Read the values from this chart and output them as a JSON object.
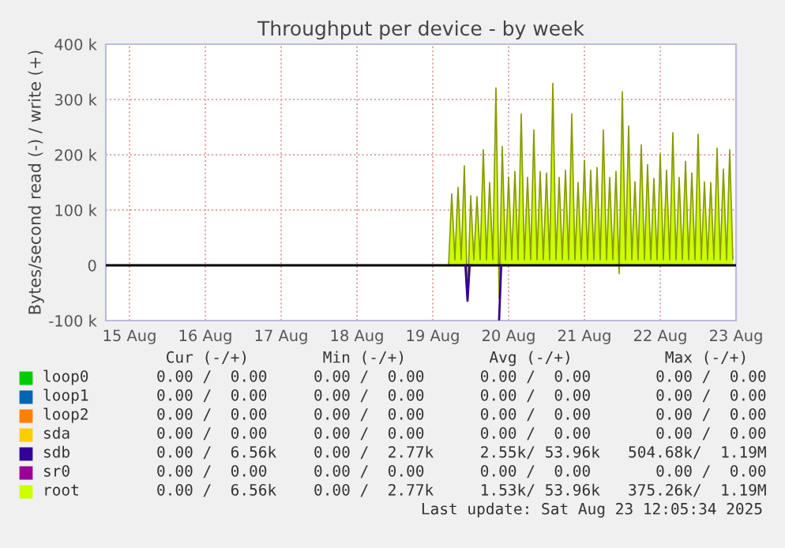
{
  "chart_data": {
    "type": "line",
    "title": "Throughput per device - by week",
    "ylabel": "Bytes/second read (-) / write (+)",
    "xlim": [
      "2025-08-15T04:30",
      "2025-08-23T12:00"
    ],
    "xticks": [
      {
        "value": "2025-08-15T12:00",
        "label": "15 Aug"
      },
      {
        "value": "2025-08-16T12:00",
        "label": "16 Aug"
      },
      {
        "value": "2025-08-17T12:00",
        "label": "17 Aug"
      },
      {
        "value": "2025-08-18T12:00",
        "label": "18 Aug"
      },
      {
        "value": "2025-08-19T12:00",
        "label": "19 Aug"
      },
      {
        "value": "2025-08-20T12:00",
        "label": "20 Aug"
      },
      {
        "value": "2025-08-21T12:00",
        "label": "21 Aug"
      },
      {
        "value": "2025-08-22T12:00",
        "label": "22 Aug"
      },
      {
        "value": "2025-08-23T12:00",
        "label": "23 Aug"
      }
    ],
    "ylim": [
      -100000,
      400000
    ],
    "yticks": [
      {
        "value": -100000,
        "label": "-100 k"
      },
      {
        "value": 0,
        "label": "0"
      },
      {
        "value": 100000,
        "label": "100 k"
      },
      {
        "value": 200000,
        "label": "200 k"
      },
      {
        "value": 300000,
        "label": "300 k"
      },
      {
        "value": 400000,
        "label": "400 k"
      }
    ],
    "grid": true,
    "legend": "bottom",
    "ref_lines": [
      {
        "axis": "y",
        "value": 0,
        "color": "#000000"
      }
    ],
    "series": [
      {
        "name": "loop0",
        "color": "#00cc00",
        "values": [
          null
        ]
      },
      {
        "name": "loop1",
        "color": "#0066b3",
        "values": [
          null
        ]
      },
      {
        "name": "loop2",
        "color": "#ff8000",
        "values": [
          null
        ]
      },
      {
        "name": "sda",
        "color": "#ffcc00",
        "values": [
          null
        ]
      },
      {
        "name": "sdb",
        "color": "#330099",
        "x": [
          "2025-08-19T22:20",
          "2025-08-19T23:00",
          "2025-08-19T23:40",
          "2025-08-20T08:20",
          "2025-08-20T09:00",
          "2025-08-20T09:40"
        ],
        "values": [
          0,
          -64000,
          0,
          null,
          -98000,
          0
        ]
      },
      {
        "name": "sr0",
        "color": "#990099",
        "values": [
          null
        ]
      },
      {
        "name": "root",
        "color": "#ccff00",
        "type": "area",
        "x": [
          "2025-08-19T17:00",
          "2025-08-19T18:00",
          "2025-08-19T19:00",
          "2025-08-19T20:00",
          "2025-08-19T21:00",
          "2025-08-19T22:00",
          "2025-08-19T23:00",
          "2025-08-20T00:00",
          "2025-08-20T01:00",
          "2025-08-20T02:00",
          "2025-08-20T03:00",
          "2025-08-20T04:00",
          "2025-08-20T05:00",
          "2025-08-20T06:00",
          "2025-08-20T07:00",
          "2025-08-20T08:00",
          "2025-08-20T09:00",
          "2025-08-20T10:00",
          "2025-08-20T11:00",
          "2025-08-20T12:00",
          "2025-08-20T13:00",
          "2025-08-20T14:00",
          "2025-08-20T15:00",
          "2025-08-20T16:00",
          "2025-08-20T17:00",
          "2025-08-20T18:00",
          "2025-08-20T19:00",
          "2025-08-20T20:00",
          "2025-08-20T21:00",
          "2025-08-20T22:00",
          "2025-08-20T23:00",
          "2025-08-21T00:00",
          "2025-08-21T01:00",
          "2025-08-21T02:00",
          "2025-08-21T03:00",
          "2025-08-21T04:00",
          "2025-08-21T05:00",
          "2025-08-21T06:00",
          "2025-08-21T07:00",
          "2025-08-21T08:00",
          "2025-08-21T09:00",
          "2025-08-21T10:00",
          "2025-08-21T11:00",
          "2025-08-21T12:00",
          "2025-08-21T13:00",
          "2025-08-21T14:00",
          "2025-08-21T15:00",
          "2025-08-21T16:00",
          "2025-08-21T17:00",
          "2025-08-21T18:00",
          "2025-08-21T19:00",
          "2025-08-21T20:00",
          "2025-08-21T21:00",
          "2025-08-21T22:00",
          "2025-08-21T23:00",
          "2025-08-22T00:00",
          "2025-08-22T01:00",
          "2025-08-22T02:00",
          "2025-08-22T03:00",
          "2025-08-22T04:00",
          "2025-08-22T05:00",
          "2025-08-22T06:00",
          "2025-08-22T07:00",
          "2025-08-22T08:00",
          "2025-08-22T09:00",
          "2025-08-22T10:00",
          "2025-08-22T11:00",
          "2025-08-22T12:00",
          "2025-08-22T13:00",
          "2025-08-22T14:00",
          "2025-08-22T15:00",
          "2025-08-22T16:00",
          "2025-08-22T17:00",
          "2025-08-22T18:00",
          "2025-08-22T19:00",
          "2025-08-22T20:00",
          "2025-08-22T21:00",
          "2025-08-22T22:00",
          "2025-08-22T23:00",
          "2025-08-23T00:00",
          "2025-08-23T01:00",
          "2025-08-23T02:00",
          "2025-08-23T03:00",
          "2025-08-23T04:00",
          "2025-08-23T05:00",
          "2025-08-23T06:00",
          "2025-08-23T07:00",
          "2025-08-23T08:00",
          "2025-08-23T09:00",
          "2025-08-23T10:00",
          "2025-08-23T11:00"
        ],
        "values": [
          0,
          129000,
          10000,
          141000,
          10000,
          180000,
          -64000,
          126000,
          10000,
          124000,
          10000,
          209000,
          10000,
          150000,
          10000,
          321000,
          -60000,
          215000,
          10000,
          159000,
          10000,
          170000,
          10000,
          274000,
          10000,
          159000,
          10000,
          245000,
          10000,
          170000,
          10000,
          167000,
          10000,
          329000,
          10000,
          159000,
          10000,
          172000,
          10000,
          274000,
          10000,
          150000,
          10000,
          190000,
          10000,
          172000,
          10000,
          177000,
          10000,
          245000,
          10000,
          159000,
          10000,
          170000,
          -15000,
          314000,
          10000,
          252000,
          10000,
          151000,
          10000,
          218000,
          10000,
          182000,
          10000,
          157000,
          10000,
          201000,
          10000,
          172000,
          10000,
          240000,
          10000,
          159000,
          10000,
          188000,
          10000,
          167000,
          10000,
          237000,
          10000,
          151000,
          10000,
          150000,
          10000,
          212000,
          10000,
          174000,
          10000,
          209000,
          10000
        ]
      }
    ],
    "annotations": [
      " Cur (-/+)        Min (-/+)         Avg (-/+)          Max (-/+)",
      "0.00 /  0.00     0.00 /  0.00      0.00 /  0.00       0.00 /  0.00",
      "0.00 /  0.00     0.00 /  0.00      0.00 /  0.00       0.00 /  0.00",
      "0.00 /  0.00     0.00 /  0.00      0.00 /  0.00       0.00 /  0.00",
      "0.00 /  0.00     0.00 /  0.00      0.00 /  0.00       0.00 /  0.00",
      "0.00 /  6.56k    0.00 /  2.77k     2.55k/ 53.96k   504.68k/  1.19M",
      "0.00 /  0.00     0.00 /  0.00      0.00 /  0.00       0.00 /  0.00",
      "0.00 /  6.56k    0.00 /  2.77k     1.53k/ 53.96k   375.26k/  1.19M",
      "Last update: Sat Aug 23 12:05:34 2025"
    ]
  }
}
